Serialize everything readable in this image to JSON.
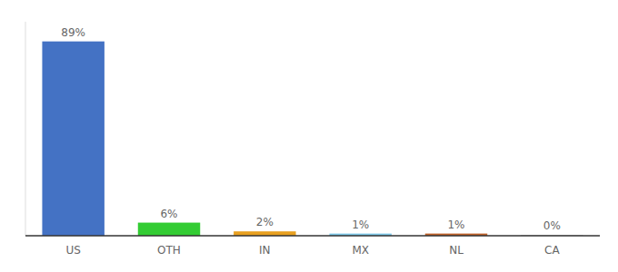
{
  "chart_data": {
    "type": "bar",
    "categories": [
      "US",
      "OTH",
      "IN",
      "MX",
      "NL",
      "CA"
    ],
    "values": [
      89,
      6,
      2,
      1,
      1,
      0.3
    ],
    "value_labels": [
      "89%",
      "6%",
      "2%",
      "1%",
      "1%",
      "0%"
    ],
    "colors": [
      "#4472c4",
      "#33cc33",
      "#e8a020",
      "#7ec8e8",
      "#c0622a",
      "#bbbbbb"
    ],
    "ylim": [
      0,
      98
    ],
    "data_labels": true,
    "tick_labels": "x",
    "grid": false
  }
}
